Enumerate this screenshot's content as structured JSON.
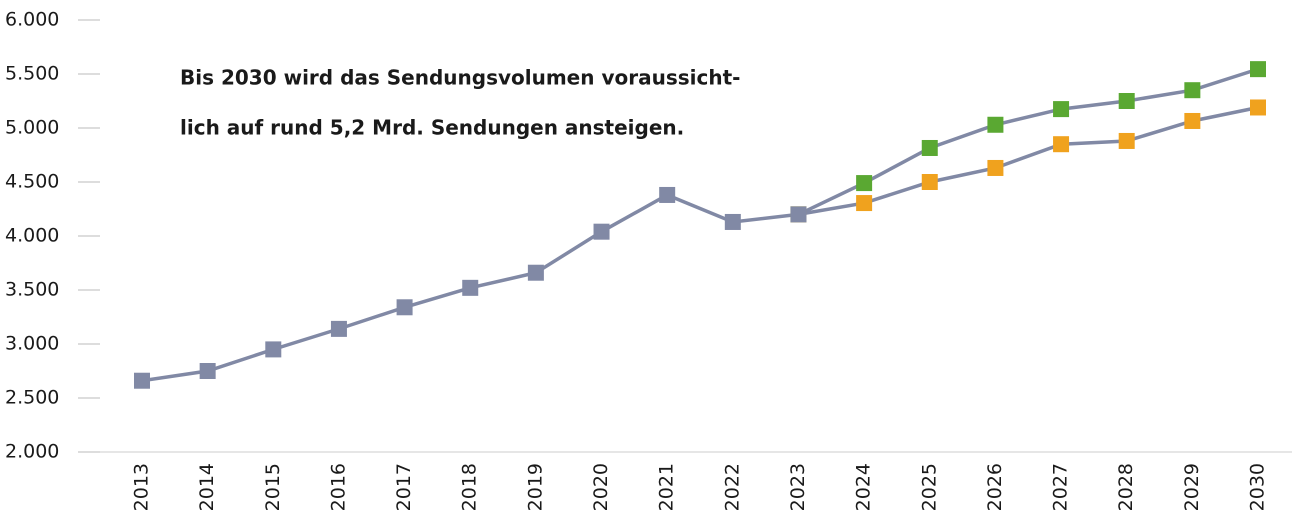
{
  "chart_data": {
    "type": "line",
    "annotation": [
      "Bis 2030 wird das Sendungsvolumen voraussicht-",
      "lich auf rund 5,2 Mrd. Sendungen ansteigen."
    ],
    "categories": [
      "2013",
      "2014",
      "2015",
      "2016",
      "2017",
      "2018",
      "2019",
      "2020",
      "2021",
      "2022",
      "2023",
      "2024",
      "2025",
      "2026",
      "2027",
      "2028",
      "2029",
      "2030"
    ],
    "line_color": "#8189a5",
    "series": [
      {
        "color": "#8189a5",
        "values": [
          2660,
          2750,
          2950,
          3140,
          3340,
          3520,
          3660,
          4040,
          4380,
          4130,
          4200,
          null,
          null,
          null,
          null,
          null,
          null,
          null
        ]
      },
      {
        "color": "#5aa832",
        "values": [
          null,
          null,
          null,
          null,
          null,
          null,
          null,
          null,
          null,
          null,
          4200,
          4490,
          4815,
          5030,
          5175,
          5250,
          5350,
          5545
        ]
      },
      {
        "color": "#f0a21e",
        "values": [
          null,
          null,
          null,
          null,
          null,
          null,
          null,
          null,
          null,
          null,
          4200,
          4305,
          4500,
          4630,
          4850,
          4880,
          5065,
          5190
        ]
      }
    ],
    "ylim": [
      2000,
      6000
    ],
    "yticks": [
      {
        "value": 2000,
        "label": "2.000"
      },
      {
        "value": 2500,
        "label": "2.500"
      },
      {
        "value": 3000,
        "label": "3.000"
      },
      {
        "value": 3500,
        "label": "3.500"
      },
      {
        "value": 4000,
        "label": "4.000"
      },
      {
        "value": 4500,
        "label": "4.500"
      },
      {
        "value": 5000,
        "label": "5.000"
      },
      {
        "value": 5500,
        "label": "5.500"
      },
      {
        "value": 6000,
        "label": "6.000"
      }
    ]
  }
}
